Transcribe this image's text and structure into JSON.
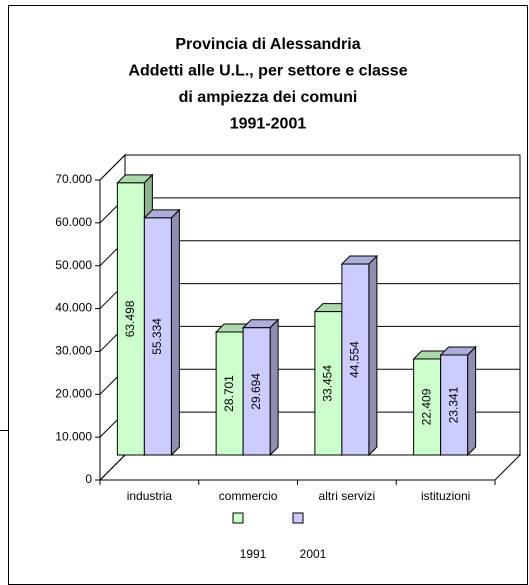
{
  "chart_data": {
    "type": "bar3d",
    "title": [
      "Provincia di Alessandria",
      "Addetti alle U.L., per settore e classe",
      "di ampiezza dei comuni",
      "1991-2001"
    ],
    "categories": [
      "industria",
      "commercio",
      "altri servizi",
      "istituzioni"
    ],
    "series": [
      {
        "name": "1991",
        "color": "#ccffcc",
        "values": [
          63498,
          28701,
          33454,
          22409
        ],
        "value_labels": [
          "63.498",
          "28.701",
          "33.454",
          "22.409"
        ]
      },
      {
        "name": "2001",
        "color": "#ccccff",
        "values": [
          55334,
          29694,
          44554,
          23341
        ],
        "value_labels": [
          "55.334",
          "29.694",
          "44.554",
          "23.341"
        ]
      }
    ],
    "ylim": [
      0,
      70000
    ],
    "yticks": [
      0,
      {
        "value": 10000,
        "label": "10.000"
      },
      {
        "value": 20000,
        "label": "20.000"
      },
      {
        "value": 30000,
        "label": "30.000"
      },
      {
        "value": 40000,
        "label": "40.000"
      },
      {
        "value": 50000,
        "label": "50.000"
      },
      {
        "value": 60000,
        "label": "60.000"
      },
      {
        "value": 70000,
        "label": "70.000"
      }
    ],
    "grid": true,
    "legend": "bottom"
  }
}
